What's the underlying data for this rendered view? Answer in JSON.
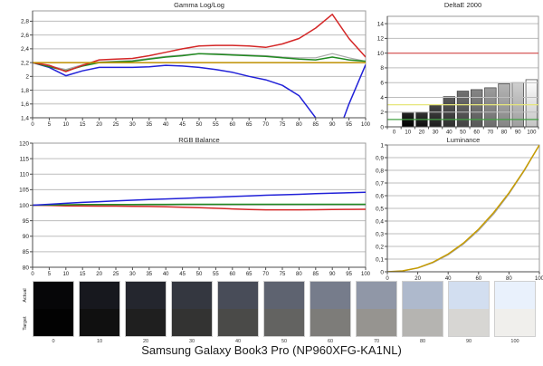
{
  "page": {
    "caption": "Samsung Galaxy Book3 Pro (NP960XFG-KA1NL)",
    "background": "#ffffff"
  },
  "colors": {
    "red_line": "#d42727",
    "green_line": "#228b22",
    "blue_line": "#2121d8",
    "gray_line": "#a8a8a8",
    "target_yellow": "#bf9000",
    "ref_red": "#d94f4f",
    "ref_yellow": "#e6e67a",
    "ref_green": "#44a044",
    "gridline": "#bdbdbd"
  },
  "chart_data": [
    {
      "id": "gamma",
      "type": "line",
      "title": "Gamma Log/Log",
      "xlabel": "",
      "ylabel": "",
      "xlim": [
        0,
        100
      ],
      "ylim": [
        1.4,
        2.95
      ],
      "xticks": [
        0,
        5,
        10,
        15,
        20,
        25,
        30,
        35,
        40,
        45,
        50,
        55,
        60,
        65,
        70,
        75,
        80,
        85,
        90,
        95,
        100
      ],
      "xtick_labels": [
        "0",
        "5",
        "10",
        "15",
        "20",
        "25",
        "30",
        "35",
        "40",
        "45",
        "50",
        "55",
        "60",
        "65",
        "70",
        "75",
        "80",
        "85",
        "90",
        "95",
        "100"
      ],
      "yticks": [
        1.4,
        1.6,
        1.8,
        2.0,
        2.2,
        2.4,
        2.6,
        2.8
      ],
      "ytick_labels": [
        "1,4",
        "1,6",
        "1,8",
        "2",
        "2,2",
        "2,4",
        "2,6",
        "2,8"
      ],
      "x": [
        0,
        5,
        10,
        15,
        20,
        25,
        30,
        35,
        40,
        45,
        50,
        55,
        60,
        65,
        70,
        75,
        80,
        85,
        90,
        95,
        100
      ],
      "series": [
        {
          "name": "white",
          "color": "#a8a8a8",
          "values": [
            2.2,
            2.15,
            2.1,
            2.17,
            2.21,
            2.22,
            2.23,
            2.26,
            2.29,
            2.31,
            2.33,
            2.33,
            2.32,
            2.31,
            2.3,
            2.28,
            2.27,
            2.27,
            2.33,
            2.27,
            2.22
          ]
        },
        {
          "name": "blue",
          "color": "#2121d8",
          "values": [
            2.2,
            2.13,
            2.01,
            2.08,
            2.13,
            2.13,
            2.13,
            2.14,
            2.16,
            2.15,
            2.13,
            2.1,
            2.06,
            2.0,
            1.95,
            1.87,
            1.72,
            1.4,
            0.95,
            1.6,
            2.17
          ]
        },
        {
          "name": "green",
          "color": "#228b22",
          "values": [
            2.2,
            2.14,
            2.08,
            2.15,
            2.2,
            2.21,
            2.22,
            2.25,
            2.28,
            2.3,
            2.33,
            2.32,
            2.31,
            2.3,
            2.29,
            2.27,
            2.25,
            2.24,
            2.28,
            2.24,
            2.22
          ]
        },
        {
          "name": "red",
          "color": "#d42727",
          "values": [
            2.2,
            2.16,
            2.07,
            2.16,
            2.24,
            2.25,
            2.26,
            2.3,
            2.35,
            2.4,
            2.44,
            2.45,
            2.45,
            2.44,
            2.42,
            2.47,
            2.55,
            2.7,
            2.9,
            2.55,
            2.28
          ]
        },
        {
          "name": "target-gamma",
          "color": "#bf9000",
          "flat": 2.2
        }
      ],
      "legend": "none",
      "grid": "horizontal"
    },
    {
      "id": "deltae",
      "type": "bar",
      "title": "DeltaE 2000",
      "xlabel": "",
      "ylabel": "",
      "xlim": [
        0,
        100
      ],
      "ylim": [
        0,
        15
      ],
      "yticks": [
        0,
        2,
        4,
        6,
        8,
        10,
        12,
        14
      ],
      "ytick_labels": [
        "0",
        "2",
        "4",
        "6",
        "8",
        "10",
        "12",
        "14"
      ],
      "categories": [
        0,
        10,
        20,
        30,
        40,
        50,
        60,
        70,
        80,
        90,
        100
      ],
      "values": [
        0,
        1.9,
        2.0,
        3.0,
        4.1,
        4.85,
        5.05,
        5.3,
        5.85,
        6.0,
        6.4
      ],
      "bar_gradients": [
        [
          "#111111",
          "#000000"
        ],
        [
          "#222222",
          "#000000"
        ],
        [
          "#333333",
          "#0d0d0d"
        ],
        [
          "#474747",
          "#1c1c1c"
        ],
        [
          "#5c5c5c",
          "#2e2e2e"
        ],
        [
          "#717171",
          "#424242"
        ],
        [
          "#868686",
          "#575757"
        ],
        [
          "#9c9c9c",
          "#6d6d6d"
        ],
        [
          "#b4b4b4",
          "#858585"
        ],
        [
          "#cecece",
          "#9f9f9f"
        ],
        [
          "#ffffff",
          "#c4c4c4"
        ]
      ],
      "ref_lines": [
        {
          "name": "limit",
          "value": 10,
          "color": "#d94f4f"
        },
        {
          "name": "warning",
          "value": 3,
          "color": "#e6e67a"
        },
        {
          "name": "good",
          "value": 1,
          "color": "#44a044"
        }
      ],
      "legend": "none",
      "grid": "horizontal"
    },
    {
      "id": "rgb",
      "type": "line",
      "title": "RGB Balance",
      "xlabel": "",
      "ylabel": "",
      "xlim": [
        0,
        100
      ],
      "ylim": [
        80,
        120
      ],
      "xticks": [
        0,
        5,
        10,
        15,
        20,
        25,
        30,
        35,
        40,
        45,
        50,
        55,
        60,
        65,
        70,
        75,
        80,
        85,
        90,
        95,
        100
      ],
      "xtick_labels": [
        "0",
        "5",
        "10",
        "15",
        "20",
        "25",
        "30",
        "35",
        "40",
        "45",
        "50",
        "55",
        "60",
        "65",
        "70",
        "75",
        "80",
        "85",
        "90",
        "95",
        "100"
      ],
      "yticks": [
        80,
        85,
        90,
        95,
        100,
        105,
        110,
        115,
        120
      ],
      "ytick_labels": [
        "80",
        "85",
        "90",
        "95",
        "100",
        "105",
        "110",
        "115",
        "120"
      ],
      "x": [
        0,
        5,
        10,
        15,
        20,
        25,
        30,
        35,
        40,
        45,
        50,
        55,
        60,
        65,
        70,
        75,
        80,
        85,
        90,
        95,
        100
      ],
      "series": [
        {
          "name": "red",
          "color": "#d42727",
          "values": [
            100,
            99.9,
            99.8,
            99.75,
            99.7,
            99.7,
            99.65,
            99.6,
            99.5,
            99.35,
            99.2,
            99.0,
            98.8,
            98.6,
            98.5,
            98.5,
            98.5,
            98.55,
            98.6,
            98.65,
            98.7
          ]
        },
        {
          "name": "green",
          "color": "#228b22",
          "values": [
            100,
            100.1,
            100.15,
            100.2,
            100.2,
            100.2,
            100.2,
            100.25,
            100.25,
            100.3,
            100.3,
            100.3,
            100.3,
            100.3,
            100.3,
            100.3,
            100.3,
            100.3,
            100.3,
            100.3,
            100.3
          ]
        },
        {
          "name": "blue",
          "color": "#2121d8",
          "values": [
            100,
            100.3,
            100.6,
            100.9,
            101.15,
            101.4,
            101.6,
            101.8,
            102.0,
            102.2,
            102.4,
            102.6,
            102.8,
            103.0,
            103.2,
            103.35,
            103.5,
            103.7,
            103.85,
            104.0,
            104.15
          ]
        }
      ],
      "legend": "none",
      "grid": "horizontal"
    },
    {
      "id": "lum",
      "type": "line",
      "title": "Luminance",
      "xlabel": "",
      "ylabel": "",
      "xlim": [
        0,
        100
      ],
      "ylim": [
        0,
        1
      ],
      "xticks": [
        0,
        20,
        40,
        60,
        80,
        100
      ],
      "xtick_labels": [
        "0",
        "20",
        "40",
        "60",
        "80",
        "100"
      ],
      "yticks": [
        0,
        0.1,
        0.2,
        0.3,
        0.4,
        0.5,
        0.6,
        0.7,
        0.8,
        0.9,
        1
      ],
      "ytick_labels": [
        "0",
        "0,1",
        "0,2",
        "0,3",
        "0,4",
        "0,5",
        "0,6",
        "0,7",
        "0,8",
        "0,9",
        "1"
      ],
      "x": [
        0,
        10,
        20,
        30,
        40,
        50,
        60,
        70,
        80,
        90,
        100
      ],
      "series": [
        {
          "name": "target-luminance",
          "color": "#a8a8a8",
          "values": [
            0,
            0.006,
            0.029,
            0.071,
            0.133,
            0.218,
            0.325,
            0.456,
            0.613,
            0.794,
            1.0
          ]
        },
        {
          "name": "measured-luminance",
          "color": "#c79c00",
          "values": [
            0,
            0.007,
            0.031,
            0.076,
            0.14,
            0.226,
            0.336,
            0.468,
            0.622,
            0.8,
            1.0
          ]
        }
      ],
      "legend": "none",
      "grid": "horizontal"
    }
  ],
  "grayscale": {
    "row_labels": [
      "Actual",
      "Target"
    ],
    "levels": [
      "0",
      "10",
      "20",
      "30",
      "40",
      "50",
      "60",
      "70",
      "80",
      "90",
      "100"
    ],
    "actual_colors": [
      "#060608",
      "#17181e",
      "#24262e",
      "#343740",
      "#484c58",
      "#5e6370",
      "#767c8b",
      "#9097a7",
      "#aeb9cc",
      "#d2def0",
      "#e9f1fc"
    ],
    "target_colors": [
      "#020202",
      "#101010",
      "#1f1f1f",
      "#333332",
      "#4a4a48",
      "#636361",
      "#7d7c79",
      "#969490",
      "#b5b4b1",
      "#d7d6d3",
      "#f0efec"
    ]
  }
}
